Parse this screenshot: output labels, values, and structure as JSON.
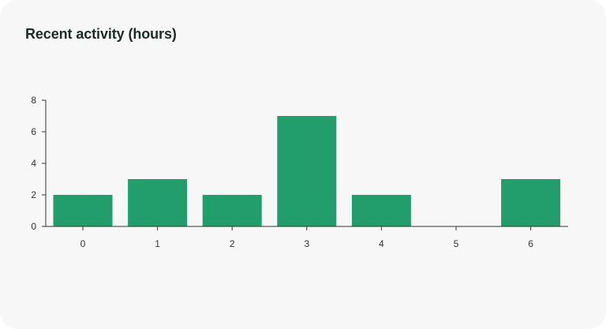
{
  "card": {
    "title": "Recent activity (hours)"
  },
  "colors": {
    "bar": "#229e6c",
    "axis": "#333333",
    "background": "#f7f7f7",
    "title": "#1e2a25"
  },
  "chart_data": {
    "type": "bar",
    "title": "Recent activity (hours)",
    "xlabel": "",
    "ylabel": "",
    "categories": [
      "0",
      "1",
      "2",
      "3",
      "4",
      "5",
      "6"
    ],
    "values": [
      2,
      3,
      2,
      7,
      2,
      0,
      3
    ],
    "ylim": [
      0,
      8
    ],
    "yticks": [
      0,
      2,
      4,
      6,
      8
    ],
    "grid": false,
    "legend": "none"
  }
}
